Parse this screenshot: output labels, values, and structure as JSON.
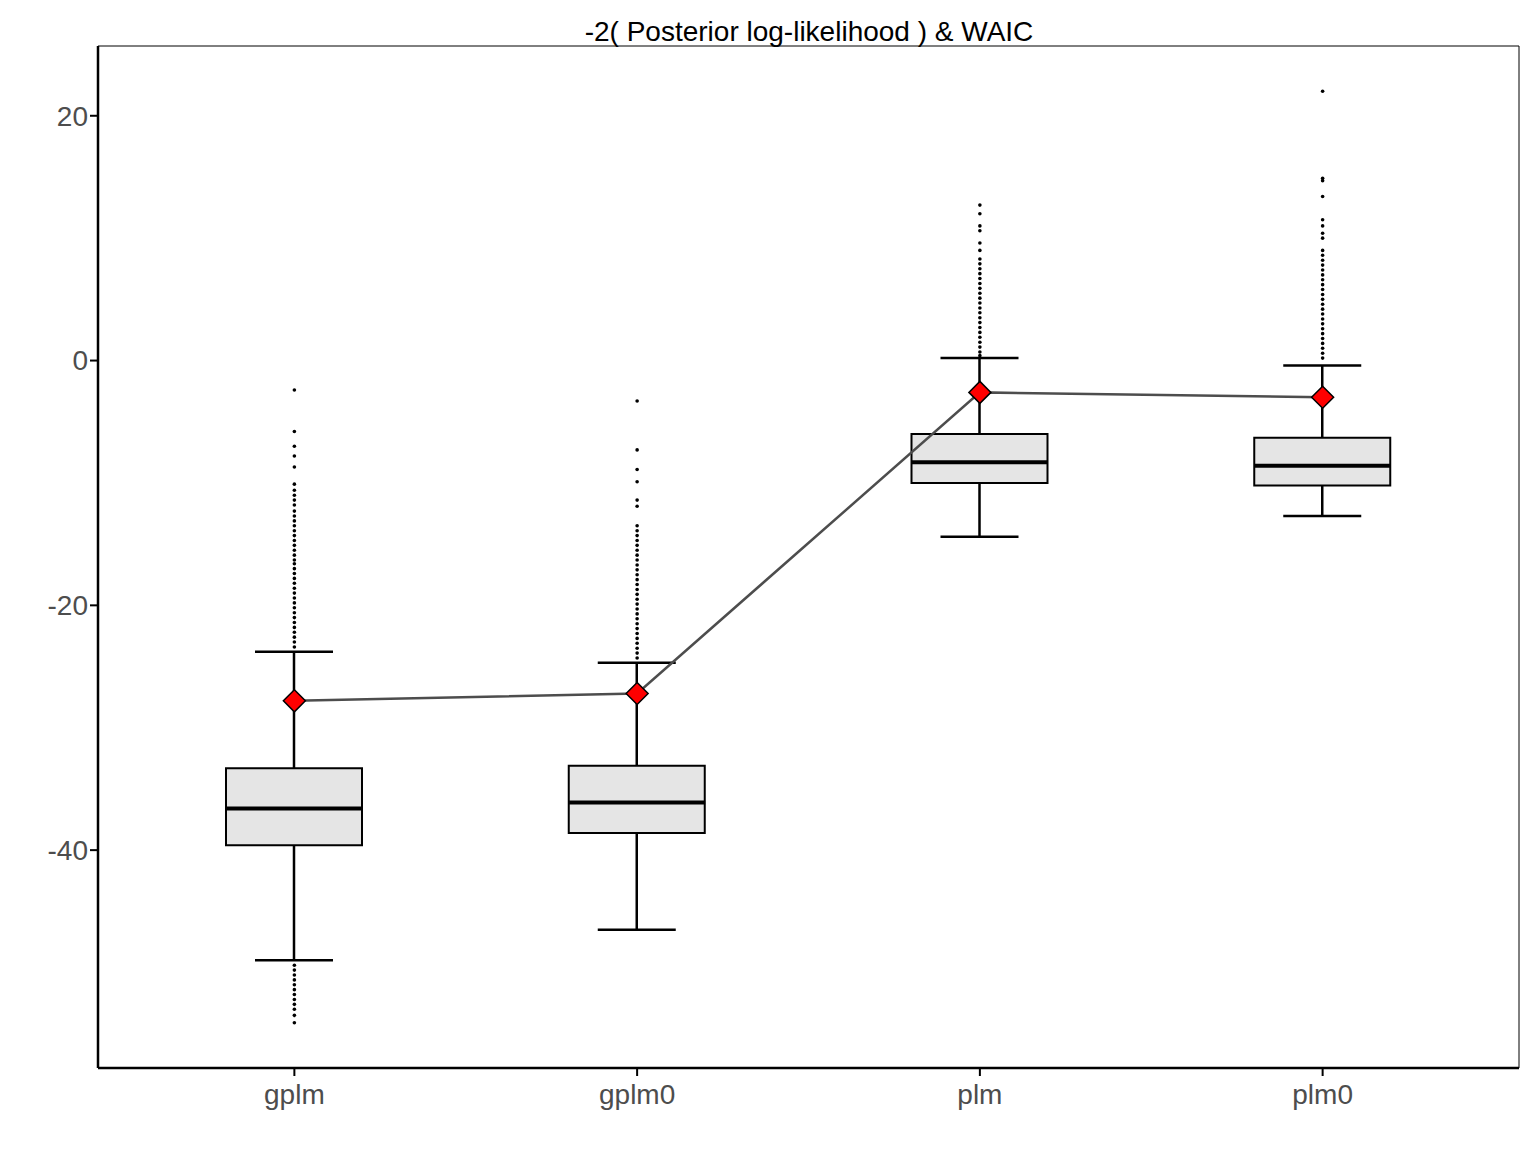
{
  "chart_data": {
    "type": "boxplot",
    "title": "-2( Posterior log-likelihood ) & WAIC",
    "categories": [
      "gplm",
      "gplm0",
      "plm",
      "plm0"
    ],
    "color": "#e5e5e5",
    "boxes": [
      {
        "whisker_low": -49.0,
        "q1": -39.6,
        "median": -36.6,
        "q3": -33.3,
        "whisker_high": -23.8,
        "outliers": [
          -2.4,
          -5.8,
          -7.0,
          -7.8,
          -8.7,
          -10.1,
          -10.6,
          -11.0,
          -11.4,
          -11.8,
          -12.3,
          -12.7,
          -13.1,
          -13.5,
          -13.9,
          -14.3,
          -14.7,
          -15.1,
          -15.5,
          -15.9,
          -16.3,
          -16.6,
          -17.0,
          -17.4,
          -17.8,
          -18.2,
          -18.6,
          -19.0,
          -19.4,
          -19.8,
          -20.2,
          -20.6,
          -21.0,
          -21.4,
          -21.8,
          -22.2,
          -22.6,
          -23.0,
          -23.4,
          -49.4,
          -49.8,
          -50.2,
          -50.6,
          -51.0,
          -51.4,
          -51.8,
          -52.2,
          -52.6,
          -53.0,
          -53.5,
          -54.1
        ]
      },
      {
        "whisker_low": -46.5,
        "q1": -38.6,
        "median": -36.1,
        "q3": -33.1,
        "whisker_high": -24.7,
        "outliers": [
          -3.3,
          -7.3,
          -8.9,
          -9.9,
          -11.4,
          -11.9,
          -13.5,
          -13.9,
          -14.3,
          -14.7,
          -15.1,
          -15.5,
          -15.9,
          -16.3,
          -16.7,
          -17.1,
          -17.5,
          -17.9,
          -18.3,
          -18.7,
          -19.1,
          -19.5,
          -19.9,
          -20.3,
          -20.7,
          -21.1,
          -21.5,
          -21.9,
          -22.3,
          -22.7,
          -23.1,
          -23.5,
          -23.9,
          -24.3
        ]
      },
      {
        "whisker_low": -14.4,
        "q1": -10.0,
        "median": -8.3,
        "q3": -6.0,
        "whisker_high": 0.2,
        "outliers": [
          12.7,
          12.0,
          11.0,
          10.6,
          9.6,
          9.0,
          8.3,
          7.9,
          7.5,
          7.1,
          6.7,
          6.3,
          5.9,
          5.5,
          5.1,
          4.7,
          4.3,
          3.9,
          3.5,
          3.1,
          2.7,
          2.3,
          1.9,
          1.5,
          1.1,
          0.7,
          0.4
        ]
      },
      {
        "whisker_low": -12.7,
        "q1": -10.2,
        "median": -8.6,
        "q3": -6.3,
        "whisker_high": -0.4,
        "outliers": [
          22.0,
          14.9,
          14.7,
          13.4,
          11.5,
          11.0,
          10.4,
          10.0,
          9.0,
          8.6,
          8.2,
          7.8,
          7.4,
          7.0,
          6.6,
          6.2,
          5.8,
          5.4,
          5.0,
          4.6,
          4.2,
          3.8,
          3.4,
          3.0,
          2.6,
          2.2,
          1.8,
          1.4,
          1.0,
          0.6,
          0.2
        ]
      }
    ],
    "series": [
      {
        "type": "line",
        "color": "#ff0000",
        "marker": "diamond",
        "values": [
          -27.8,
          -27.2,
          -2.6,
          -3.0
        ]
      }
    ],
    "ylim": [
      -57.8,
      25.7
    ],
    "yticks": [
      -40,
      -20,
      0,
      20
    ],
    "grid": false
  }
}
